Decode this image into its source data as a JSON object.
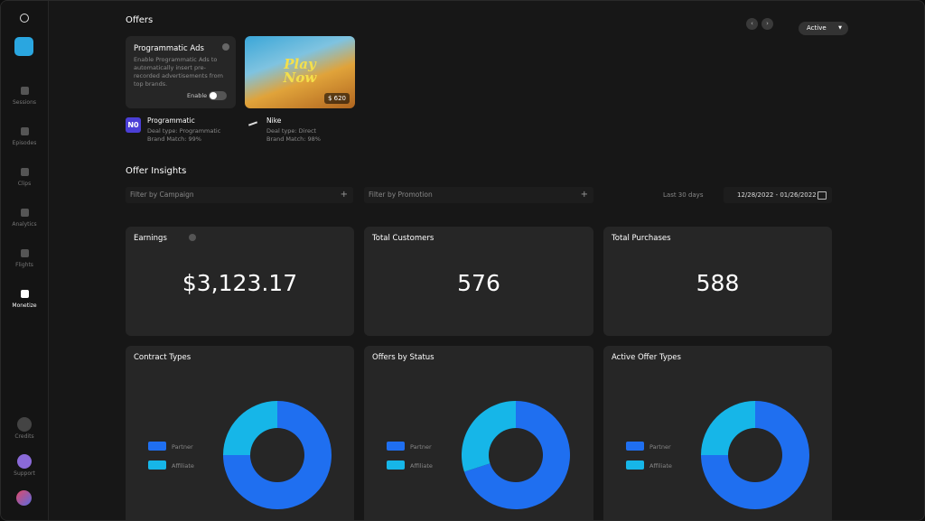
{
  "sidebar": {
    "items": [
      "Sessions",
      "Episodes",
      "Clips",
      "Analytics",
      "Flights",
      "Monetize"
    ],
    "active": "Monetize",
    "bottom": [
      "Credits",
      "Support"
    ]
  },
  "offers": {
    "title": "Offers",
    "status": "Active",
    "promo_card": {
      "title": "Programmatic Ads",
      "description": "Enable Programmatic Ads to automatically insert pre-recorded advertisements from top brands.",
      "toggle_label": "Enable"
    },
    "image_card": {
      "headline": "Play Now",
      "price": "$ 620"
    },
    "deals": [
      {
        "logo": "N0",
        "name": "Programmatic",
        "deal_type": "Deal type: Programmatic",
        "brand_match": "Brand Match: 99%"
      },
      {
        "name": "Nike",
        "deal_type": "Deal type: Direct",
        "brand_match": "Brand Match: 98%"
      }
    ]
  },
  "insights": {
    "title": "Offer Insights",
    "filters": [
      "Filter by Campaign",
      "Filter by Promotion"
    ],
    "range_label": "Last 30 days",
    "date_range": "12/28/2022 - 01/26/2022",
    "stats": [
      {
        "label": "Earnings",
        "value": "$3,123.17"
      },
      {
        "label": "Total Customers",
        "value": "576"
      },
      {
        "label": "Total Purchases",
        "value": "588"
      }
    ]
  },
  "chart_data": [
    {
      "type": "donut",
      "title": "Contract Types",
      "categories": [
        "Partner",
        "Affiliate"
      ],
      "values": [
        75,
        25
      ],
      "colors": [
        "#1f6ff0",
        "#16b6e8"
      ]
    },
    {
      "type": "donut",
      "title": "Offers by Status",
      "categories": [
        "Partner",
        "Affiliate"
      ],
      "values": [
        70,
        30
      ],
      "colors": [
        "#1f6ff0",
        "#16b6e8"
      ]
    },
    {
      "type": "donut",
      "title": "Active Offer Types",
      "categories": [
        "Partner",
        "Affiliate"
      ],
      "values": [
        75,
        25
      ],
      "colors": [
        "#1f6ff0",
        "#16b6e8"
      ]
    }
  ]
}
